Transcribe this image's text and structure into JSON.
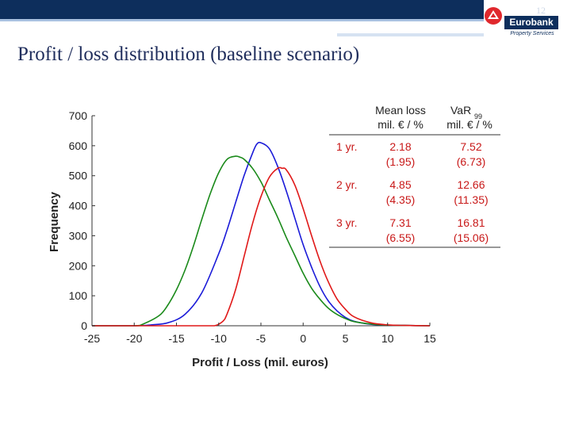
{
  "slide": {
    "page_number": "12",
    "title": "Profit / loss distribution (baseline scenario)"
  },
  "logo": {
    "name": "Eurobank",
    "subtitle": "Property Services"
  },
  "colors": {
    "navy": "#0d2e5c",
    "title": "#1f2d5c",
    "series_1yr": "#1a1ad8",
    "series_2yr": "#1a8a1a",
    "series_3yr": "#e01818",
    "table_label": "#c81818"
  },
  "chart_data": {
    "type": "line",
    "xlabel": "Profit / Loss (mil. euros)",
    "ylabel": "Frequency",
    "xlim": [
      -25,
      15
    ],
    "ylim": [
      0,
      700
    ],
    "xticks": [
      -25,
      -20,
      -15,
      -10,
      -5,
      0,
      5,
      10,
      15
    ],
    "yticks": [
      0,
      100,
      200,
      300,
      400,
      500,
      600,
      700
    ],
    "grid": false,
    "series": [
      {
        "label": "1 yr.",
        "color": "#1a1ad8",
        "x": [
          -25,
          -20,
          -18,
          -16,
          -14,
          -12,
          -10,
          -9,
          -8,
          -7,
          -6,
          -5.5,
          -5,
          -4,
          -3,
          -2,
          -1,
          0,
          1,
          2,
          3,
          4,
          5,
          6,
          8,
          10,
          12,
          15
        ],
        "y": [
          0,
          0,
          3,
          10,
          38,
          110,
          240,
          320,
          410,
          500,
          575,
          605,
          610,
          590,
          530,
          450,
          360,
          270,
          195,
          130,
          82,
          50,
          28,
          15,
          5,
          2,
          1,
          0
        ]
      },
      {
        "label": "2 yr.",
        "color": "#1a8a1a",
        "x": [
          -25,
          -20,
          -19,
          -17,
          -16,
          -15,
          -14,
          -13,
          -12,
          -11,
          -10,
          -9,
          -8,
          -7.5,
          -7,
          -6,
          -5,
          -4,
          -3,
          -2,
          -1,
          0,
          1,
          2,
          3,
          4,
          5,
          6,
          8,
          10,
          12,
          15
        ],
        "y": [
          0,
          0,
          5,
          35,
          70,
          120,
          185,
          265,
          355,
          440,
          510,
          555,
          565,
          562,
          555,
          525,
          480,
          420,
          360,
          295,
          235,
          175,
          125,
          88,
          58,
          38,
          24,
          14,
          6,
          2,
          1,
          0
        ]
      },
      {
        "label": "3 yr.",
        "color": "#e01818",
        "x": [
          -25,
          -12,
          -10.5,
          -9.5,
          -9,
          -8,
          -7,
          -6,
          -5,
          -4,
          -3,
          -2.5,
          -2,
          -1,
          0,
          1,
          2,
          3,
          4,
          5,
          6,
          8,
          10,
          12,
          15
        ],
        "y": [
          0,
          0,
          0,
          15,
          40,
          120,
          230,
          340,
          430,
          495,
          525,
          525,
          520,
          470,
          390,
          300,
          215,
          145,
          90,
          55,
          30,
          10,
          3,
          1,
          0
        ]
      }
    ],
    "table": {
      "headers": [
        "",
        "Mean loss\nmil. € / %",
        "VaR99\nmil. € / %"
      ],
      "var_main": "VaR",
      "var_sub": "99",
      "var_line2": "mil. € / %",
      "mean_line1": "Mean loss",
      "mean_line2": "mil. € / %",
      "rows": [
        {
          "label": "1 yr.",
          "mean": "2.18",
          "mean_pct": "(1.95)",
          "var": "7.52",
          "var_pct": "(6.73)"
        },
        {
          "label": "2 yr.",
          "mean": "4.85",
          "mean_pct": "(4.35)",
          "var": "12.66",
          "var_pct": "(11.35)"
        },
        {
          "label": "3 yr.",
          "mean": "7.31",
          "mean_pct": "(6.55)",
          "var": "16.81",
          "var_pct": "(15.06)"
        }
      ]
    }
  }
}
